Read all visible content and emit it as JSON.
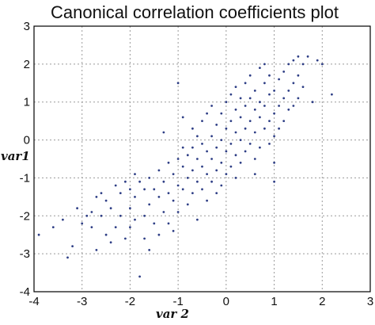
{
  "chart_data": {
    "type": "scatter",
    "title": "Canonical correlation coefficients plot",
    "xlabel": "var 2",
    "ylabel": "var1",
    "xlim": [
      -4,
      3
    ],
    "ylim": [
      -4,
      3
    ],
    "xticks": [
      -4,
      -3,
      -2,
      -1,
      0,
      1,
      2,
      3
    ],
    "yticks": [
      -4,
      -3,
      -2,
      -1,
      0,
      1,
      2,
      3
    ],
    "grid": true,
    "point_color": "#2f3f86",
    "series": [
      {
        "points": [
          [
            -3.9,
            -2.5
          ],
          [
            -3.6,
            -2.3
          ],
          [
            -3.4,
            -2.1
          ],
          [
            -3.3,
            -3.1
          ],
          [
            -3.2,
            -2.8
          ],
          [
            -3.1,
            -1.8
          ],
          [
            -3.0,
            -2.2
          ],
          [
            -2.9,
            -2.0
          ],
          [
            -2.8,
            -1.9
          ],
          [
            -2.8,
            -2.3
          ],
          [
            -2.7,
            -1.5
          ],
          [
            -2.7,
            -2.9
          ],
          [
            -2.6,
            -1.4
          ],
          [
            -2.6,
            -2.0
          ],
          [
            -2.5,
            -1.6
          ],
          [
            -2.5,
            -2.5
          ],
          [
            -2.4,
            -1.8
          ],
          [
            -2.4,
            -2.7
          ],
          [
            -2.3,
            -1.2
          ],
          [
            -2.3,
            -2.3
          ],
          [
            -2.2,
            -1.4
          ],
          [
            -2.2,
            -2.0
          ],
          [
            -2.1,
            -1.1
          ],
          [
            -2.1,
            -2.6
          ],
          [
            -2.0,
            -1.3
          ],
          [
            -2.0,
            -1.8
          ],
          [
            -2.0,
            -2.3
          ],
          [
            -1.9,
            -0.9
          ],
          [
            -1.9,
            -1.5
          ],
          [
            -1.9,
            -2.1
          ],
          [
            -1.8,
            -1.1
          ],
          [
            -1.8,
            -3.6
          ],
          [
            -1.7,
            -1.3
          ],
          [
            -1.7,
            -2.0
          ],
          [
            -1.7,
            -2.6
          ],
          [
            -1.6,
            -1.0
          ],
          [
            -1.6,
            -1.7
          ],
          [
            -1.6,
            -2.9
          ],
          [
            -1.5,
            -1.3
          ],
          [
            -1.5,
            -2.2
          ],
          [
            -1.4,
            -0.8
          ],
          [
            -1.4,
            -1.5
          ],
          [
            -1.4,
            -2.5
          ],
          [
            -1.3,
            -1.1
          ],
          [
            -1.3,
            -1.9
          ],
          [
            -1.2,
            -0.6
          ],
          [
            -1.2,
            -1.4
          ],
          [
            -1.2,
            -2.2
          ],
          [
            -1.1,
            -0.9
          ],
          [
            -1.1,
            -1.6
          ],
          [
            -1.1,
            -2.4
          ],
          [
            -1.0,
            -0.5
          ],
          [
            -1.0,
            -1.2
          ],
          [
            -1.0,
            -1.9
          ],
          [
            -1.0,
            1.5
          ],
          [
            -0.9,
            -0.7
          ],
          [
            -0.9,
            -1.3
          ],
          [
            -0.9,
            0.6
          ],
          [
            -0.8,
            -0.4
          ],
          [
            -0.8,
            -1.0
          ],
          [
            -0.8,
            -1.7
          ],
          [
            -0.7,
            -0.2
          ],
          [
            -0.7,
            -0.8
          ],
          [
            -0.7,
            -1.4
          ],
          [
            -0.7,
            0.3
          ],
          [
            -0.6,
            -0.5
          ],
          [
            -0.6,
            -1.1
          ],
          [
            -0.6,
            -2.1
          ],
          [
            -0.5,
            -0.1
          ],
          [
            -0.5,
            -0.7
          ],
          [
            -0.5,
            -1.3
          ],
          [
            -0.5,
            0.5
          ],
          [
            -0.4,
            -0.3
          ],
          [
            -0.4,
            -0.9
          ],
          [
            -0.4,
            -1.6
          ],
          [
            -0.3,
            0.1
          ],
          [
            -0.3,
            -0.5
          ],
          [
            -0.3,
            -1.1
          ],
          [
            -0.3,
            0.9
          ],
          [
            -0.2,
            -0.2
          ],
          [
            -0.2,
            -0.8
          ],
          [
            -0.2,
            0.4
          ],
          [
            -0.2,
            -1.4
          ],
          [
            -0.1,
            0.0
          ],
          [
            -0.1,
            -0.6
          ],
          [
            -0.1,
            0.7
          ],
          [
            -0.1,
            -1.2
          ],
          [
            0.0,
            0.3
          ],
          [
            0.0,
            -0.3
          ],
          [
            0.0,
            1.0
          ],
          [
            0.0,
            -0.9
          ],
          [
            0.1,
            0.5
          ],
          [
            0.1,
            -0.1
          ],
          [
            0.1,
            1.2
          ],
          [
            0.1,
            -0.7
          ],
          [
            0.2,
            0.2
          ],
          [
            0.2,
            0.8
          ],
          [
            0.2,
            -0.4
          ],
          [
            0.2,
            1.4
          ],
          [
            0.3,
            0.0
          ],
          [
            0.3,
            0.6
          ],
          [
            0.3,
            1.1
          ],
          [
            0.3,
            -0.6
          ],
          [
            0.4,
            0.3
          ],
          [
            0.4,
            0.9
          ],
          [
            0.4,
            1.5
          ],
          [
            0.4,
            -0.3
          ],
          [
            0.5,
            0.5
          ],
          [
            0.5,
            1.1
          ],
          [
            0.5,
            -0.1
          ],
          [
            0.5,
            1.7
          ],
          [
            0.6,
            0.2
          ],
          [
            0.6,
            0.8
          ],
          [
            0.6,
            1.3
          ],
          [
            0.6,
            -0.5
          ],
          [
            0.7,
            0.6
          ],
          [
            0.7,
            1.0
          ],
          [
            0.7,
            1.9
          ],
          [
            0.7,
            -0.2
          ],
          [
            0.8,
            0.3
          ],
          [
            0.8,
            0.9
          ],
          [
            0.8,
            1.5
          ],
          [
            0.8,
            2.0
          ],
          [
            0.9,
            0.5
          ],
          [
            0.9,
            1.2
          ],
          [
            0.9,
            -0.1
          ],
          [
            0.9,
            1.7
          ],
          [
            1.0,
            0.7
          ],
          [
            1.0,
            1.3
          ],
          [
            1.0,
            0.1
          ],
          [
            1.0,
            -1.1
          ],
          [
            1.1,
            0.9
          ],
          [
            1.1,
            1.6
          ],
          [
            1.1,
            0.3
          ],
          [
            1.2,
            1.1
          ],
          [
            1.2,
            1.8
          ],
          [
            1.2,
            0.5
          ],
          [
            1.3,
            1.3
          ],
          [
            1.3,
            2.0
          ],
          [
            1.3,
            0.8
          ],
          [
            1.4,
            1.5
          ],
          [
            1.4,
            2.1
          ],
          [
            1.4,
            0.9
          ],
          [
            1.5,
            1.7
          ],
          [
            1.5,
            2.2
          ],
          [
            1.5,
            1.1
          ],
          [
            1.6,
            2.0
          ],
          [
            1.6,
            1.4
          ],
          [
            1.7,
            2.2
          ],
          [
            1.8,
            1.0
          ],
          [
            1.9,
            2.1
          ],
          [
            2.2,
            1.2
          ],
          [
            2.0,
            2.0
          ],
          [
            -0.9,
            -0.2
          ],
          [
            -0.6,
            0.1
          ],
          [
            -0.4,
            0.7
          ],
          [
            0.2,
            -1.0
          ],
          [
            0.6,
            -0.9
          ],
          [
            1.0,
            -0.6
          ],
          [
            -1.3,
            0.2
          ]
        ]
      }
    ]
  }
}
